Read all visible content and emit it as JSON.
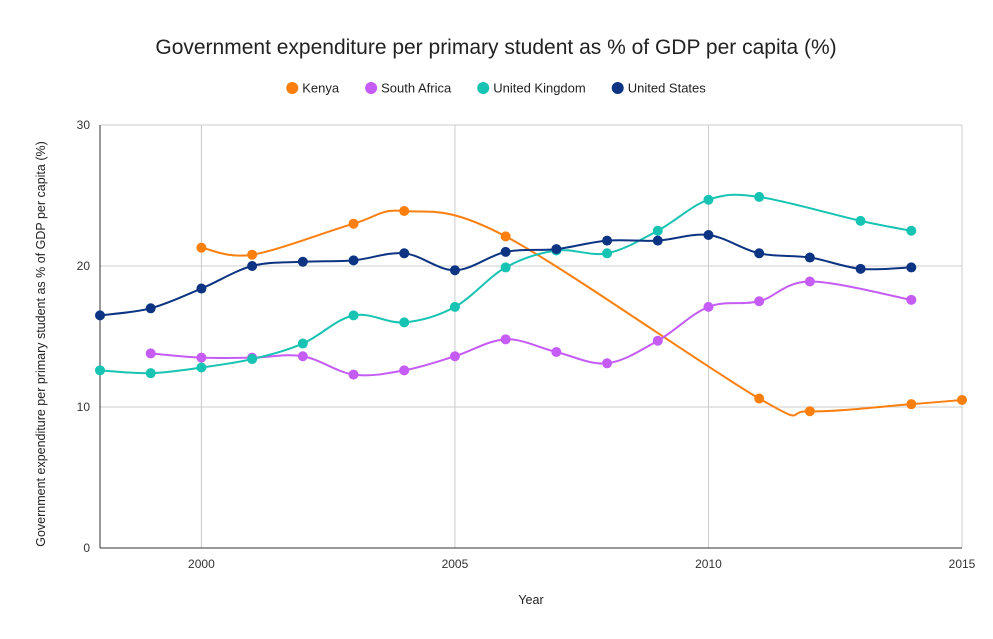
{
  "chart_data": {
    "type": "line",
    "title": "Government expenditure per primary student as % of GDP per capita (%)",
    "xlabel": "Year",
    "ylabel": "Government expenditure per primary student as % of GDP per capita (%)",
    "xlim": [
      1998,
      2015
    ],
    "ylim": [
      0,
      30
    ],
    "x_ticks": [
      2000,
      2005,
      2010,
      2015
    ],
    "y_ticks": [
      0,
      10,
      20,
      30
    ],
    "grid": true,
    "legend_position": "top",
    "series": [
      {
        "name": "Kenya",
        "color": "#fa7f0e",
        "points": [
          [
            2000,
            21.3
          ],
          [
            2001,
            20.8
          ],
          [
            2003,
            23.0
          ],
          [
            2004,
            23.9
          ],
          [
            2006,
            22.1
          ],
          [
            2011,
            10.6
          ],
          [
            2012,
            9.7
          ],
          [
            2014,
            10.2
          ],
          [
            2015,
            10.5
          ]
        ]
      },
      {
        "name": "South Africa",
        "color": "#c45cf5",
        "points": [
          [
            1999,
            13.8
          ],
          [
            2000,
            13.5
          ],
          [
            2001,
            13.5
          ],
          [
            2002,
            13.6
          ],
          [
            2003,
            12.3
          ],
          [
            2004,
            12.6
          ],
          [
            2005,
            13.6
          ],
          [
            2006,
            14.8
          ],
          [
            2007,
            13.9
          ],
          [
            2008,
            13.1
          ],
          [
            2009,
            14.7
          ],
          [
            2010,
            17.1
          ],
          [
            2011,
            17.5
          ],
          [
            2012,
            18.9
          ],
          [
            2014,
            17.6
          ]
        ]
      },
      {
        "name": "United Kingdom",
        "color": "#17c3b2",
        "points": [
          [
            1998,
            12.6
          ],
          [
            1999,
            12.4
          ],
          [
            2000,
            12.8
          ],
          [
            2001,
            13.4
          ],
          [
            2002,
            14.5
          ],
          [
            2003,
            16.5
          ],
          [
            2004,
            16.0
          ],
          [
            2005,
            17.1
          ],
          [
            2006,
            19.9
          ],
          [
            2007,
            21.1
          ],
          [
            2008,
            20.9
          ],
          [
            2009,
            22.5
          ],
          [
            2010,
            24.7
          ],
          [
            2011,
            24.9
          ],
          [
            2013,
            23.2
          ],
          [
            2014,
            22.5
          ]
        ]
      },
      {
        "name": "United States",
        "color": "#0d3482",
        "points": [
          [
            1998,
            16.5
          ],
          [
            1999,
            17.0
          ],
          [
            2000,
            18.4
          ],
          [
            2001,
            20.0
          ],
          [
            2002,
            20.3
          ],
          [
            2003,
            20.4
          ],
          [
            2004,
            20.9
          ],
          [
            2005,
            19.7
          ],
          [
            2006,
            21.0
          ],
          [
            2007,
            21.2
          ],
          [
            2008,
            21.8
          ],
          [
            2009,
            21.8
          ],
          [
            2010,
            22.2
          ],
          [
            2011,
            20.9
          ],
          [
            2012,
            20.6
          ],
          [
            2013,
            19.8
          ],
          [
            2014,
            19.9
          ]
        ]
      }
    ]
  }
}
